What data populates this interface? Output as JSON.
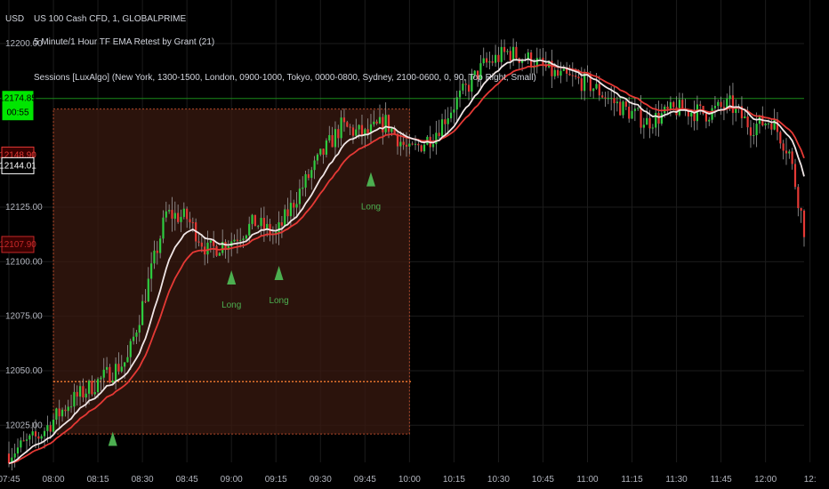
{
  "header": {
    "currency": "USD",
    "symbol_line": "US 100 Cash CFD, 1, GLOBALPRIME",
    "indicator_line": "5 Minute/1 Hour TF EMA Retest by Grant (21)",
    "sessions_line": "Sessions [LuxAlgo] (New York, 1300-1500, London, 0900-1000, Tokyo, 0000-0800, Sydney, 2100-0600, 0, 90, Top Right, Small)"
  },
  "colors": {
    "background": "#000000",
    "grid": "#1c1c1c",
    "bull": "#26a69a",
    "bull_candle": "#2ecc40",
    "bear_candle": "#e53935",
    "ema_fast": "#f0e6e6",
    "ema_slow": "#e53935",
    "session_fill": "#3a1a10",
    "session_border": "#b84a2a",
    "hline": "#1b8a1b",
    "long_marker": "#4caf50"
  },
  "chart_data": {
    "type": "candlestick",
    "y_ticks": [
      "12200.00",
      "12125.00",
      "12100.00",
      "12075.00",
      "12050.00",
      "12025.00"
    ],
    "x_ticks": [
      "07:45",
      "08:00",
      "08:15",
      "08:30",
      "08:45",
      "09:00",
      "09:15",
      "09:30",
      "09:45",
      "10:00",
      "10:15",
      "10:30",
      "10:45",
      "11:00",
      "11:15",
      "11:30",
      "11:45",
      "12:00",
      "12:"
    ],
    "ylim": [
      12008,
      12220
    ],
    "xlim_minutes": [
      462,
      733
    ],
    "price_tags": [
      {
        "label": "12174.85",
        "sub": "00:55",
        "value": 12174.85,
        "bg": "#00e600",
        "fg": "#000000"
      },
      {
        "label": "12148.90",
        "value": 12148.9,
        "bg": "#3a0000",
        "fg": "#e53935"
      },
      {
        "label": "12144.01",
        "value": 12144.01,
        "bg": "#000000",
        "fg": "#ffffff"
      },
      {
        "label": "12107.90",
        "value": 12107.9,
        "bg": "#3a0000",
        "fg": "#c62828"
      }
    ],
    "horizontal_line": 12174.85,
    "session_box": {
      "start": "08:00",
      "end": "10:00",
      "high": 12170,
      "low": 12021,
      "mid": 12045
    },
    "signals": [
      {
        "time": "08:20",
        "price": 12018,
        "label": ""
      },
      {
        "time": "09:00",
        "price": 12092,
        "label": "Long"
      },
      {
        "time": "09:16",
        "price": 12094,
        "label": "Long"
      },
      {
        "time": "09:47",
        "price": 12137,
        "label": "Long"
      }
    ],
    "price_path": [
      {
        "t": "07:45",
        "p": 12012
      },
      {
        "t": "07:55",
        "p": 12020
      },
      {
        "t": "08:05",
        "p": 12035
      },
      {
        "t": "08:15",
        "p": 12045
      },
      {
        "t": "08:25",
        "p": 12055
      },
      {
        "t": "08:30",
        "p": 12080
      },
      {
        "t": "08:38",
        "p": 12122
      },
      {
        "t": "08:45",
        "p": 12120
      },
      {
        "t": "08:52",
        "p": 12105
      },
      {
        "t": "09:00",
        "p": 12110
      },
      {
        "t": "09:08",
        "p": 12118
      },
      {
        "t": "09:15",
        "p": 12112
      },
      {
        "t": "09:22",
        "p": 12130
      },
      {
        "t": "09:30",
        "p": 12148
      },
      {
        "t": "09:37",
        "p": 12162
      },
      {
        "t": "09:45",
        "p": 12158
      },
      {
        "t": "09:52",
        "p": 12164
      },
      {
        "t": "10:00",
        "p": 12150
      },
      {
        "t": "10:08",
        "p": 12158
      },
      {
        "t": "10:15",
        "p": 12172
      },
      {
        "t": "10:25",
        "p": 12190
      },
      {
        "t": "10:33",
        "p": 12196
      },
      {
        "t": "10:42",
        "p": 12192
      },
      {
        "t": "10:50",
        "p": 12185
      },
      {
        "t": "11:00",
        "p": 12182
      },
      {
        "t": "11:10",
        "p": 12172
      },
      {
        "t": "11:20",
        "p": 12164
      },
      {
        "t": "11:30",
        "p": 12170
      },
      {
        "t": "11:40",
        "p": 12168
      },
      {
        "t": "11:48",
        "p": 12172
      },
      {
        "t": "11:55",
        "p": 12162
      },
      {
        "t": "12:02",
        "p": 12165
      },
      {
        "t": "12:08",
        "p": 12150
      },
      {
        "t": "12:13",
        "p": 12115
      }
    ]
  }
}
